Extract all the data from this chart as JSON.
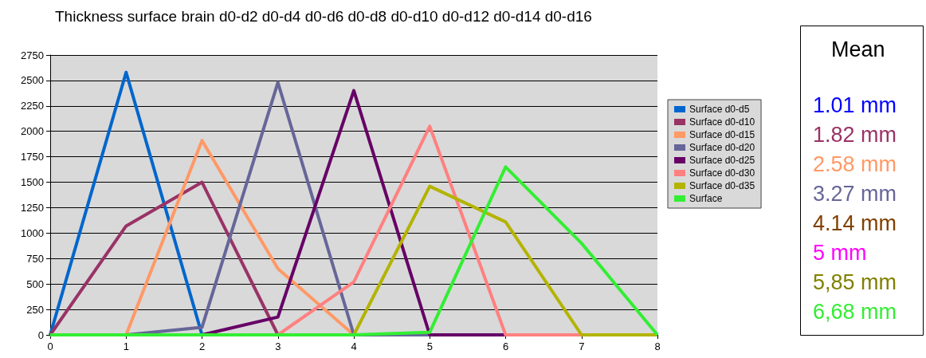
{
  "chart_data": {
    "type": "line",
    "title": "Thickness surface brain d0-d2 d0-d4 d0-d6 d0-d8 d0-d10 d0-d12 d0-d14 d0-d16",
    "x": [
      0,
      1,
      2,
      3,
      4,
      5,
      6,
      7,
      8
    ],
    "series": [
      {
        "name": "Surface d0-d5",
        "color": "#0066cc",
        "values": [
          0,
          2580,
          0,
          null,
          null,
          null,
          null,
          null,
          null
        ]
      },
      {
        "name": "Surface d0-d10",
        "color": "#993366",
        "values": [
          0,
          1070,
          1500,
          0,
          0,
          0,
          0,
          0,
          0
        ]
      },
      {
        "name": "Surface d0-d15",
        "color": "#ff9966",
        "values": [
          0,
          0,
          1910,
          650,
          0,
          0,
          0,
          0,
          0
        ]
      },
      {
        "name": "Surface d0-d20",
        "color": "#666699",
        "values": [
          0,
          0,
          75,
          2480,
          0,
          0,
          0,
          null,
          null
        ]
      },
      {
        "name": "Surface d0-d25",
        "color": "#660066",
        "values": [
          0,
          0,
          0,
          175,
          2400,
          0,
          0,
          0,
          0
        ]
      },
      {
        "name": "Surface d0-d30",
        "color": "#ff8080",
        "values": [
          0,
          0,
          0,
          0,
          520,
          2050,
          0,
          0,
          0
        ]
      },
      {
        "name": "Surface d0-d35",
        "color": "#b3b300",
        "values": [
          null,
          null,
          null,
          0,
          0,
          1460,
          1110,
          0,
          0
        ]
      },
      {
        "name": "Surface",
        "color": "#33ee33",
        "values": [
          0,
          0,
          0,
          0,
          0,
          25,
          1650,
          900,
          0
        ]
      }
    ],
    "xlim": [
      0,
      8
    ],
    "xticks": [
      0,
      1,
      2,
      3,
      4,
      5,
      6,
      7,
      8
    ],
    "ylim": [
      0,
      2750
    ],
    "yticks": [
      0,
      250,
      500,
      750,
      1000,
      1250,
      1500,
      1750,
      2000,
      2250,
      2500,
      2750
    ],
    "grid": "y",
    "legend": "right",
    "marker": "none",
    "line_style": "solid",
    "annotations": [
      "Mean",
      "1.01 mm",
      "1.82 mm",
      "2.58 mm",
      "3.27 mm",
      "4.14 mm",
      "5 mm",
      "5,85 mm",
      "6,68 mm"
    ]
  }
}
